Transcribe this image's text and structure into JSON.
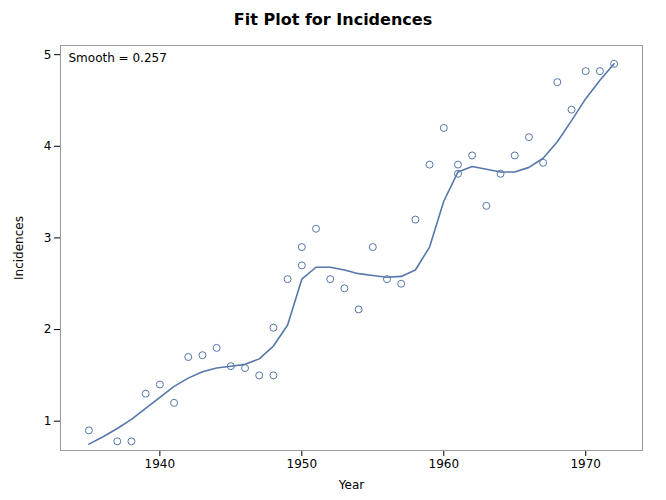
{
  "chart_data": {
    "type": "scatter",
    "title": "Fit Plot for Incidences",
    "xlabel": "Year",
    "ylabel": "Incidences",
    "annotation": "Smooth = 0.257",
    "xlim": [
      1933,
      1974
    ],
    "ylim": [
      0.68,
      5.1
    ],
    "xticks": [
      1940,
      1950,
      1960,
      1970
    ],
    "yticks": [
      1,
      2,
      3,
      4,
      5
    ],
    "grid": false,
    "series": [
      {
        "type": "scatter",
        "marker": "circle",
        "color": "#5577aa",
        "x": [
          1935,
          1937,
          1938,
          1939,
          1940,
          1941,
          1942,
          1943,
          1944,
          1945,
          1946,
          1947,
          1948,
          1948,
          1949,
          1950,
          1950,
          1951,
          1952,
          1953,
          1954,
          1955,
          1956,
          1957,
          1958,
          1959,
          1960,
          1961,
          1961,
          1962,
          1963,
          1964,
          1965,
          1966,
          1967,
          1968,
          1969,
          1970,
          1971,
          1972
        ],
        "values": [
          0.9,
          0.78,
          0.78,
          1.3,
          1.4,
          1.2,
          1.7,
          1.72,
          1.8,
          1.6,
          1.58,
          1.5,
          1.5,
          2.02,
          2.55,
          2.7,
          2.9,
          3.1,
          2.55,
          2.45,
          2.22,
          2.9,
          2.55,
          2.5,
          3.2,
          3.8,
          4.2,
          3.8,
          3.7,
          3.9,
          3.35,
          3.7,
          3.9,
          4.1,
          3.82,
          4.7,
          4.4,
          4.82,
          4.82,
          4.9
        ]
      },
      {
        "type": "line",
        "line_style": "solid",
        "color": "#5577aa",
        "x": [
          1935,
          1936,
          1937,
          1938,
          1939,
          1940,
          1941,
          1942,
          1943,
          1944,
          1945,
          1946,
          1947,
          1948,
          1949,
          1950,
          1951,
          1952,
          1953,
          1954,
          1955,
          1956,
          1957,
          1958,
          1959,
          1960,
          1961,
          1962,
          1963,
          1964,
          1965,
          1966,
          1967,
          1968,
          1969,
          1970,
          1971,
          1972
        ],
        "values": [
          0.75,
          0.83,
          0.92,
          1.02,
          1.14,
          1.26,
          1.38,
          1.47,
          1.54,
          1.58,
          1.6,
          1.62,
          1.68,
          1.82,
          2.05,
          2.55,
          2.68,
          2.68,
          2.65,
          2.61,
          2.59,
          2.57,
          2.58,
          2.65,
          2.9,
          3.4,
          3.72,
          3.78,
          3.75,
          3.72,
          3.72,
          3.77,
          3.87,
          4.05,
          4.28,
          4.52,
          4.72,
          4.9
        ]
      }
    ]
  }
}
